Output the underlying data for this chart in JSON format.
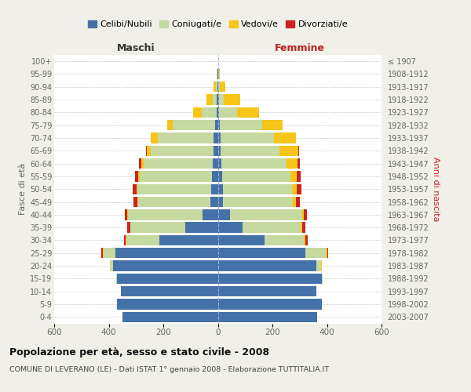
{
  "age_groups": [
    "0-4",
    "5-9",
    "10-14",
    "15-19",
    "20-24",
    "25-29",
    "30-34",
    "35-39",
    "40-44",
    "45-49",
    "50-54",
    "55-59",
    "60-64",
    "65-69",
    "70-74",
    "75-79",
    "80-84",
    "85-89",
    "90-94",
    "95-99",
    "100+"
  ],
  "birth_years": [
    "2003-2007",
    "1998-2002",
    "1993-1997",
    "1988-1992",
    "1983-1987",
    "1978-1982",
    "1973-1977",
    "1968-1972",
    "1963-1967",
    "1958-1962",
    "1953-1957",
    "1948-1952",
    "1943-1947",
    "1938-1942",
    "1933-1937",
    "1928-1932",
    "1923-1927",
    "1918-1922",
    "1913-1917",
    "1908-1912",
    "≤ 1907"
  ],
  "maschi": {
    "celibi": [
      350,
      370,
      355,
      370,
      385,
      375,
      215,
      120,
      55,
      28,
      25,
      22,
      18,
      15,
      15,
      10,
      5,
      3,
      2,
      1,
      0
    ],
    "coniugati": [
      0,
      0,
      0,
      2,
      10,
      45,
      120,
      200,
      275,
      265,
      270,
      265,
      255,
      230,
      205,
      155,
      55,
      15,
      5,
      2,
      0
    ],
    "vedovi": [
      0,
      0,
      0,
      0,
      0,
      2,
      2,
      2,
      2,
      2,
      3,
      5,
      8,
      15,
      25,
      20,
      30,
      25,
      8,
      2,
      0
    ],
    "divorziati": [
      0,
      0,
      0,
      0,
      2,
      5,
      8,
      10,
      10,
      15,
      15,
      12,
      8,
      2,
      2,
      0,
      0,
      0,
      0,
      0,
      0
    ]
  },
  "femmine": {
    "nubili": [
      365,
      380,
      360,
      380,
      360,
      320,
      170,
      90,
      45,
      20,
      18,
      15,
      12,
      10,
      10,
      8,
      5,
      5,
      2,
      1,
      0
    ],
    "coniugate": [
      0,
      0,
      0,
      5,
      18,
      75,
      145,
      215,
      265,
      255,
      255,
      250,
      240,
      215,
      195,
      155,
      65,
      18,
      5,
      2,
      0
    ],
    "vedove": [
      0,
      0,
      0,
      0,
      2,
      5,
      5,
      5,
      5,
      10,
      15,
      25,
      40,
      70,
      80,
      75,
      80,
      60,
      20,
      5,
      0
    ],
    "divorziate": [
      0,
      0,
      0,
      0,
      2,
      5,
      10,
      12,
      12,
      15,
      18,
      15,
      8,
      3,
      2,
      0,
      0,
      0,
      0,
      0,
      0
    ]
  },
  "colors": {
    "celibi": "#4472a8",
    "coniugati": "#c5d9a0",
    "vedovi": "#f5c518",
    "divorziati": "#cc2222"
  },
  "xlim": 600,
  "title": "Popolazione per età, sesso e stato civile - 2008",
  "subtitle": "COMUNE DI LEVERANO (LE) - Dati ISTAT 1° gennaio 2008 - Elaborazione TUTTITALIA.IT",
  "ylabel_left": "Fasce di età",
  "ylabel_right": "Anni di nascita",
  "label_maschi": "Maschi",
  "label_femmine": "Femmine",
  "legend_labels": [
    "Celibi/Nubili",
    "Coniugati/e",
    "Vedovi/e",
    "Divorziati/e"
  ],
  "bg_color": "#f0f0e8",
  "plot_bg": "#ffffff"
}
